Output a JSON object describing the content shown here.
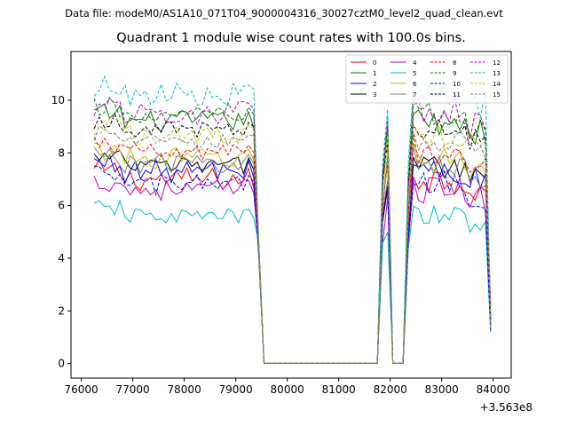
{
  "supertitle": "Data file: modeM0/AS1A10_071T04_9000004316_30027cztM0_level2_quad_clean.evt",
  "chart_data": {
    "type": "line",
    "title": "Quadrant 1 module wise count rates with 100.0s bins.",
    "xlabel": "",
    "ylabel": "",
    "x_offset_label": "+3.563e8",
    "xlim": [
      75800,
      84350
    ],
    "ylim": [
      -0.55,
      11.85
    ],
    "xticks": [
      76000,
      77000,
      78000,
      79000,
      80000,
      81000,
      82000,
      83000,
      84000
    ],
    "yticks": [
      0,
      2,
      4,
      6,
      8,
      10
    ],
    "grid": false,
    "legend": {
      "placement": "top-right",
      "columns": 4
    },
    "gaps": [
      {
        "from": 79550,
        "to": 81700
      },
      {
        "from": 81950,
        "to": 82250
      }
    ],
    "segments": [
      {
        "x_start": 76250,
        "x_end": 79350
      },
      {
        "x_start": 81850,
        "x_end": 81950
      },
      {
        "x_start": 82350,
        "x_end": 83950
      }
    ],
    "series": [
      {
        "name": "0",
        "color": "#ff0000",
        "dash": false,
        "base": 7.0,
        "amp": 0.45
      },
      {
        "name": "1",
        "color": "#008000",
        "dash": false,
        "base": 9.2,
        "amp": 0.4
      },
      {
        "name": "2",
        "color": "#0000ff",
        "dash": false,
        "base": 7.3,
        "amp": 0.45
      },
      {
        "name": "3",
        "color": "#000000",
        "dash": false,
        "base": 7.5,
        "amp": 0.35
      },
      {
        "name": "4",
        "color": "#bf00bf",
        "dash": false,
        "base": 6.6,
        "amp": 0.4
      },
      {
        "name": "5",
        "color": "#00bfbf",
        "dash": false,
        "base": 5.6,
        "amp": 0.3
      },
      {
        "name": "6",
        "color": "#bfbf00",
        "dash": false,
        "base": 7.8,
        "amp": 0.4
      },
      {
        "name": "7",
        "color": "#808080",
        "dash": false,
        "base": 7.6,
        "amp": 0.4
      },
      {
        "name": "8",
        "color": "#ff0000",
        "dash": true,
        "base": 8.0,
        "amp": 0.35
      },
      {
        "name": "9",
        "color": "#008000",
        "dash": true,
        "base": 9.4,
        "amp": 0.4
      },
      {
        "name": "10",
        "color": "#0000ff",
        "dash": true,
        "base": 6.8,
        "amp": 0.4
      },
      {
        "name": "11",
        "color": "#000000",
        "dash": true,
        "base": 8.9,
        "amp": 0.3
      },
      {
        "name": "12",
        "color": "#bf00bf",
        "dash": true,
        "base": 9.5,
        "amp": 0.45
      },
      {
        "name": "13",
        "color": "#00bfbf",
        "dash": true,
        "base": 10.2,
        "amp": 0.45
      },
      {
        "name": "14",
        "color": "#bfbf00",
        "dash": true,
        "base": 8.7,
        "amp": 0.4
      },
      {
        "name": "15",
        "color": "#808080",
        "dash": true,
        "base": 8.4,
        "amp": 0.35
      }
    ]
  }
}
